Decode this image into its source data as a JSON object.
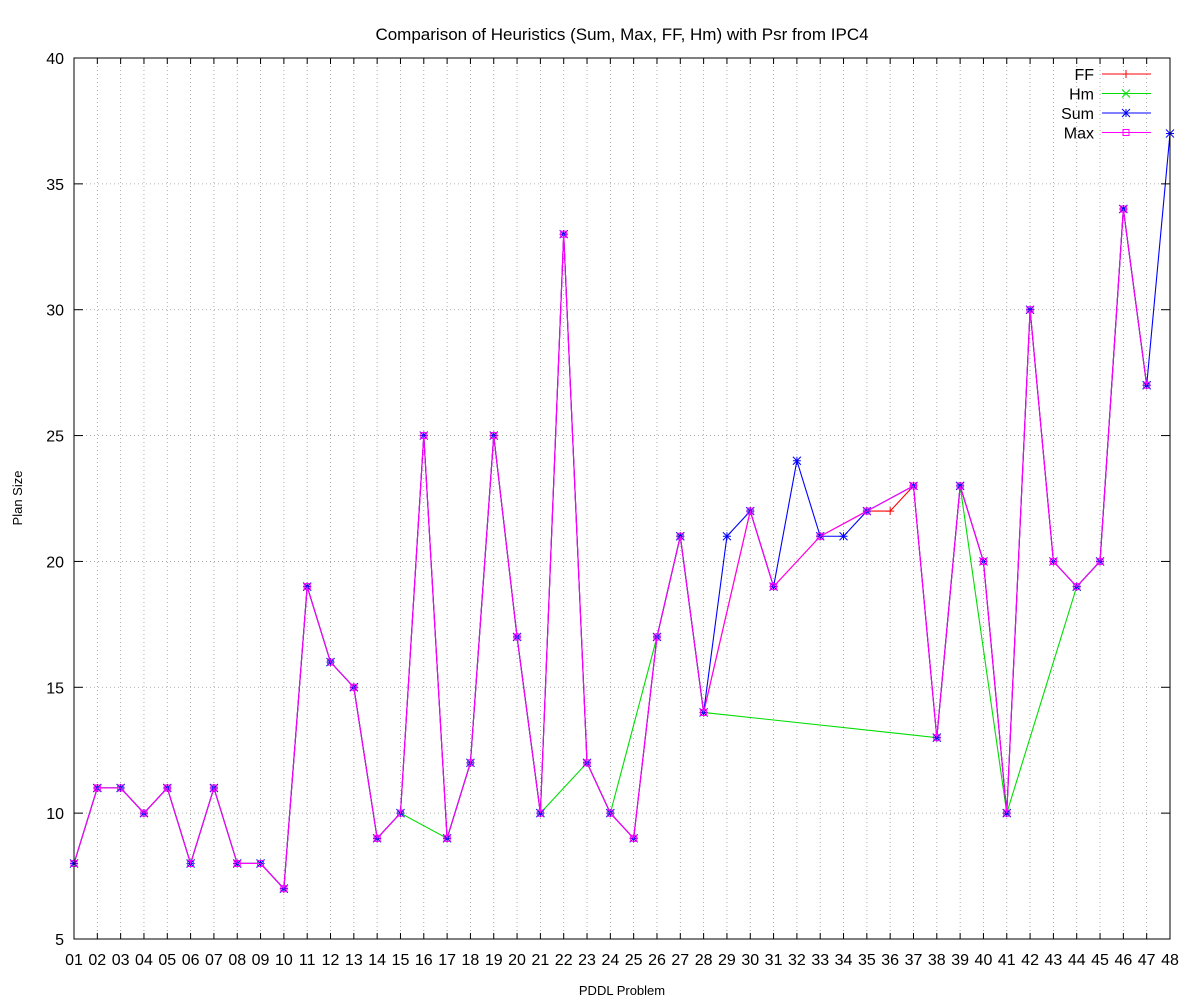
{
  "chart_data": {
    "type": "line",
    "title": "Comparison of Heuristics (Sum, Max, FF, Hm) with Psr from IPC4",
    "xlabel": "PDDL Problem",
    "ylabel": "Plan Size",
    "ylim": [
      5,
      40
    ],
    "yticks": [
      5,
      10,
      15,
      20,
      25,
      30,
      35,
      40
    ],
    "grid": true,
    "legend_position": "top-right",
    "categories": [
      "01",
      "02",
      "03",
      "04",
      "05",
      "06",
      "07",
      "08",
      "09",
      "10",
      "11",
      "12",
      "13",
      "14",
      "15",
      "16",
      "17",
      "18",
      "19",
      "20",
      "21",
      "22",
      "23",
      "24",
      "25",
      "26",
      "27",
      "28",
      "29",
      "30",
      "31",
      "32",
      "33",
      "34",
      "35",
      "36",
      "37",
      "38",
      "39",
      "40",
      "41",
      "42",
      "43",
      "44",
      "45",
      "46",
      "47",
      "48"
    ],
    "series": [
      {
        "name": "FF",
        "color": "#ff0000",
        "marker": "plus",
        "values": [
          8,
          11,
          11,
          10,
          11,
          8,
          11,
          8,
          8,
          7,
          19,
          16,
          15,
          9,
          10,
          25,
          9,
          12,
          25,
          17,
          10,
          33,
          12,
          10,
          9,
          17,
          21,
          14,
          null,
          22,
          19,
          null,
          21,
          null,
          22,
          22,
          23,
          13,
          23,
          20,
          10,
          30,
          20,
          19,
          20,
          34,
          27,
          null
        ]
      },
      {
        "name": "Hm",
        "color": "#00dd00",
        "marker": "cross",
        "values": [
          8,
          11,
          11,
          10,
          11,
          8,
          11,
          8,
          8,
          7,
          19,
          16,
          15,
          9,
          10,
          null,
          9,
          12,
          25,
          17,
          10,
          null,
          12,
          10,
          null,
          17,
          21,
          14,
          null,
          null,
          null,
          null,
          null,
          null,
          null,
          null,
          null,
          13,
          23,
          null,
          10,
          null,
          null,
          19,
          20,
          34,
          27,
          null
        ]
      },
      {
        "name": "Sum",
        "color": "#0000ff",
        "marker": "star",
        "values": [
          8,
          11,
          11,
          10,
          11,
          8,
          11,
          8,
          8,
          7,
          19,
          16,
          15,
          9,
          10,
          25,
          9,
          12,
          25,
          17,
          10,
          33,
          12,
          10,
          9,
          17,
          21,
          14,
          21,
          22,
          19,
          24,
          21,
          21,
          22,
          null,
          23,
          13,
          23,
          20,
          10,
          30,
          20,
          19,
          20,
          34,
          27,
          37
        ]
      },
      {
        "name": "Max",
        "color": "#ff00ff",
        "marker": "square",
        "values": [
          8,
          11,
          11,
          10,
          11,
          8,
          11,
          8,
          8,
          7,
          19,
          16,
          15,
          9,
          10,
          25,
          9,
          12,
          25,
          17,
          10,
          33,
          12,
          10,
          9,
          17,
          21,
          14,
          null,
          22,
          19,
          null,
          21,
          null,
          22,
          null,
          23,
          13,
          23,
          20,
          10,
          30,
          20,
          19,
          20,
          34,
          27,
          null
        ]
      }
    ]
  }
}
